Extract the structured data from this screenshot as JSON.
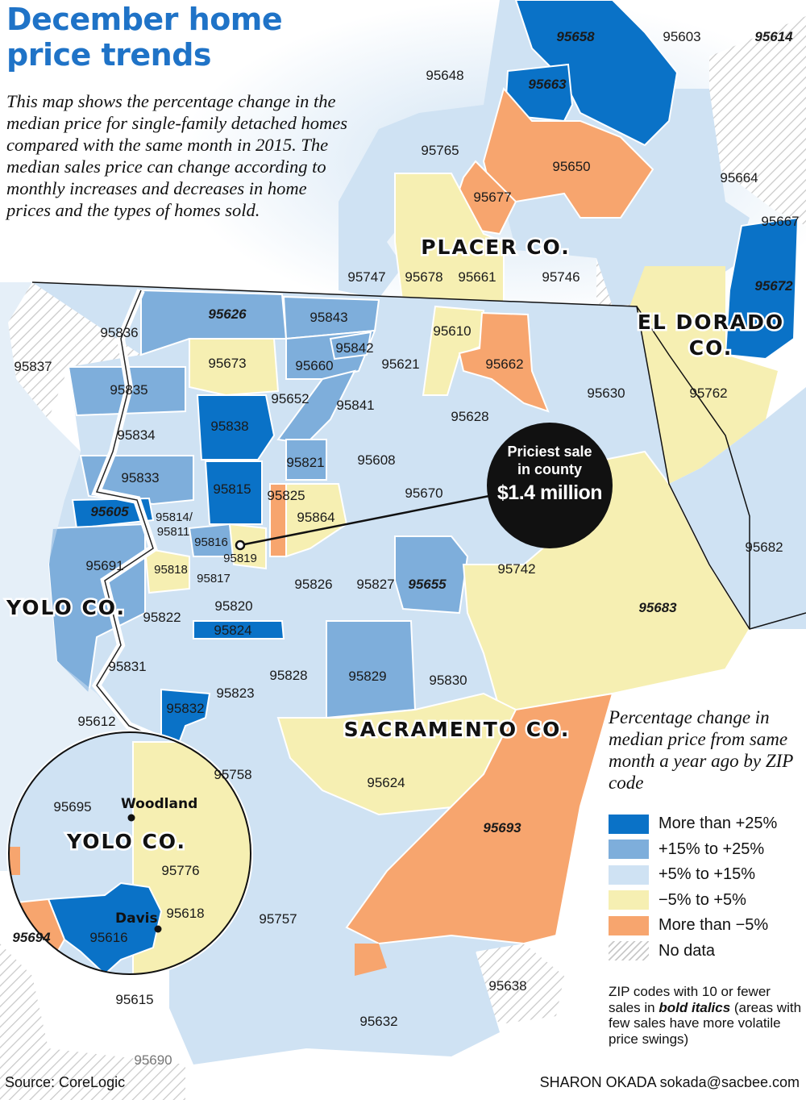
{
  "title": "December home price trends",
  "intro": "This map shows the percentage change in the median price for single-family detached homes compared with the same month in 2015. The median sales price can change according to monthly increases and decreases in home prices and the types of homes sold.",
  "colors": {
    "more_than_25": "#0a72c7",
    "p15_to_25": "#7eaedb",
    "p5_to_15": "#cfe2f3",
    "m5_to_p5": "#f6efb2",
    "less_than_m5": "#f7a56e",
    "no_data": "hatched gray"
  },
  "counties": {
    "placer": "PLACER CO.",
    "el_dorado_1": "EL DORADO",
    "el_dorado_2": "CO.",
    "yolo": "YOLO CO.",
    "sacramento": "SACRAMENTO CO.",
    "yolo_inset": "YOLO CO."
  },
  "cities": {
    "woodland": "Woodland",
    "davis": "Davis"
  },
  "callout": {
    "line1": "Priciest sale",
    "line2": "in county",
    "value": "$1.4 million"
  },
  "zips": [
    {
      "code": "95658",
      "category": "more_than_25",
      "few_sales": true
    },
    {
      "code": "95603",
      "category": "p5_to_15",
      "few_sales": false
    },
    {
      "code": "95614",
      "category": "no_data",
      "few_sales": true
    },
    {
      "code": "95648",
      "category": "p5_to_15",
      "few_sales": false
    },
    {
      "code": "95663",
      "category": "more_than_25",
      "few_sales": true
    },
    {
      "code": "95765",
      "category": "p5_to_15",
      "few_sales": false
    },
    {
      "code": "95650",
      "category": "less_than_m5",
      "few_sales": false
    },
    {
      "code": "95677",
      "category": "less_than_m5",
      "few_sales": false
    },
    {
      "code": "95664",
      "category": "p5_to_15",
      "few_sales": false
    },
    {
      "code": "95667",
      "category": "more_than_25",
      "few_sales": false
    },
    {
      "code": "95672",
      "category": "more_than_25",
      "few_sales": true
    },
    {
      "code": "95747",
      "category": "p5_to_15",
      "few_sales": false
    },
    {
      "code": "95678",
      "category": "m5_to_p5",
      "few_sales": false
    },
    {
      "code": "95661",
      "category": "m5_to_p5",
      "few_sales": false
    },
    {
      "code": "95746",
      "category": "p5_to_15",
      "few_sales": false
    },
    {
      "code": "95626",
      "category": "p15_to_25",
      "few_sales": true
    },
    {
      "code": "95843",
      "category": "p15_to_25",
      "few_sales": false
    },
    {
      "code": "95836",
      "category": "no_data",
      "few_sales": false
    },
    {
      "code": "95610",
      "category": "m5_to_p5",
      "few_sales": false
    },
    {
      "code": "95842",
      "category": "p15_to_25",
      "few_sales": false
    },
    {
      "code": "95837",
      "category": "no_data",
      "few_sales": false
    },
    {
      "code": "95673",
      "category": "m5_to_p5",
      "few_sales": false
    },
    {
      "code": "95660",
      "category": "p15_to_25",
      "few_sales": false
    },
    {
      "code": "95621",
      "category": "p5_to_15",
      "few_sales": false
    },
    {
      "code": "95662",
      "category": "less_than_m5",
      "few_sales": false
    },
    {
      "code": "95630",
      "category": "p5_to_15",
      "few_sales": false
    },
    {
      "code": "95762",
      "category": "m5_to_p5",
      "few_sales": false
    },
    {
      "code": "95835",
      "category": "p15_to_25",
      "few_sales": false
    },
    {
      "code": "95652",
      "category": "no_data",
      "few_sales": false
    },
    {
      "code": "95841",
      "category": "p5_to_15",
      "few_sales": false
    },
    {
      "code": "95838",
      "category": "more_than_25",
      "few_sales": false
    },
    {
      "code": "95628",
      "category": "p5_to_15",
      "few_sales": false
    },
    {
      "code": "95834",
      "category": "p5_to_15",
      "few_sales": false
    },
    {
      "code": "95608",
      "category": "p5_to_15",
      "few_sales": false
    },
    {
      "code": "95821",
      "category": "p15_to_25",
      "few_sales": false
    },
    {
      "code": "95833",
      "category": "p15_to_25",
      "few_sales": false
    },
    {
      "code": "95815",
      "category": "more_than_25",
      "few_sales": false
    },
    {
      "code": "95825",
      "category": "less_than_m5",
      "few_sales": false
    },
    {
      "code": "95670",
      "category": "p5_to_15",
      "few_sales": false
    },
    {
      "code": "95605",
      "category": "more_than_25",
      "few_sales": true
    },
    {
      "code": "95814/",
      "category": "p5_to_15",
      "few_sales": false
    },
    {
      "code": "95811",
      "category": "p5_to_15",
      "few_sales": false
    },
    {
      "code": "95864",
      "category": "m5_to_p5",
      "few_sales": false
    },
    {
      "code": "95816",
      "category": "p15_to_25",
      "few_sales": false
    },
    {
      "code": "95819",
      "category": "m5_to_p5",
      "few_sales": false
    },
    {
      "code": "95682",
      "category": "p5_to_15",
      "few_sales": false
    },
    {
      "code": "95691",
      "category": "p15_to_25",
      "few_sales": false
    },
    {
      "code": "95818",
      "category": "m5_to_p5",
      "few_sales": false
    },
    {
      "code": "95817",
      "category": "p5_to_15",
      "few_sales": false
    },
    {
      "code": "95826",
      "category": "p5_to_15",
      "few_sales": false
    },
    {
      "code": "95827",
      "category": "p5_to_15",
      "few_sales": false
    },
    {
      "code": "95655",
      "category": "p15_to_25",
      "few_sales": true
    },
    {
      "code": "95742",
      "category": "p5_to_15",
      "few_sales": false
    },
    {
      "code": "95820",
      "category": "p5_to_15",
      "few_sales": false
    },
    {
      "code": "95683",
      "category": "m5_to_p5",
      "few_sales": true
    },
    {
      "code": "95822",
      "category": "p5_to_15",
      "few_sales": false
    },
    {
      "code": "95824",
      "category": "more_than_25",
      "few_sales": false
    },
    {
      "code": "95831",
      "category": "p5_to_15",
      "few_sales": false
    },
    {
      "code": "95828",
      "category": "p5_to_15",
      "few_sales": false
    },
    {
      "code": "95829",
      "category": "p15_to_25",
      "few_sales": false
    },
    {
      "code": "95830",
      "category": "no_data",
      "few_sales": false
    },
    {
      "code": "95823",
      "category": "p5_to_15",
      "few_sales": false
    },
    {
      "code": "95612",
      "category": "p5_to_15",
      "few_sales": false
    },
    {
      "code": "95832",
      "category": "more_than_25",
      "few_sales": false
    },
    {
      "code": "95758",
      "category": "p5_to_15",
      "few_sales": false
    },
    {
      "code": "95624",
      "category": "m5_to_p5",
      "few_sales": false
    },
    {
      "code": "95695",
      "category": "p5_to_15",
      "few_sales": false
    },
    {
      "code": "95693",
      "category": "less_than_m5",
      "few_sales": true
    },
    {
      "code": "95776",
      "category": "m5_to_p5",
      "few_sales": false
    },
    {
      "code": "95618",
      "category": "m5_to_p5",
      "few_sales": false
    },
    {
      "code": "95757",
      "category": "p5_to_15",
      "few_sales": false
    },
    {
      "code": "95694",
      "category": "less_than_m5",
      "few_sales": true
    },
    {
      "code": "95616",
      "category": "more_than_25",
      "few_sales": false
    },
    {
      "code": "95638",
      "category": "no_data",
      "few_sales": false
    },
    {
      "code": "95615",
      "category": "p5_to_15",
      "few_sales": false
    },
    {
      "code": "95632",
      "category": "p5_to_15",
      "few_sales": false
    },
    {
      "code": "95690",
      "category": "no_data",
      "few_sales": false
    }
  ],
  "legend": {
    "title": "Percentage change in median price from same month a year ago by ZIP code",
    "items": [
      {
        "label": "More than +25%",
        "color": "#0a72c7"
      },
      {
        "label": "+15% to +25%",
        "color": "#7eaedb"
      },
      {
        "label": "+5% to +15%",
        "color": "#cfe2f3"
      },
      {
        "label": "−5% to +5%",
        "color": "#f6efb2"
      },
      {
        "label": "More than −5%",
        "color": "#f7a56e"
      },
      {
        "label": "No data",
        "color": "hatched"
      }
    ],
    "note_part1": "ZIP codes with 10 or fewer sales in ",
    "note_bold": "bold italics",
    "note_part2": " (areas with few sales have more volatile price swings)"
  },
  "source": "Source: CoreLogic",
  "credit": "SHARON OKADA  sokada@sacbee.com"
}
